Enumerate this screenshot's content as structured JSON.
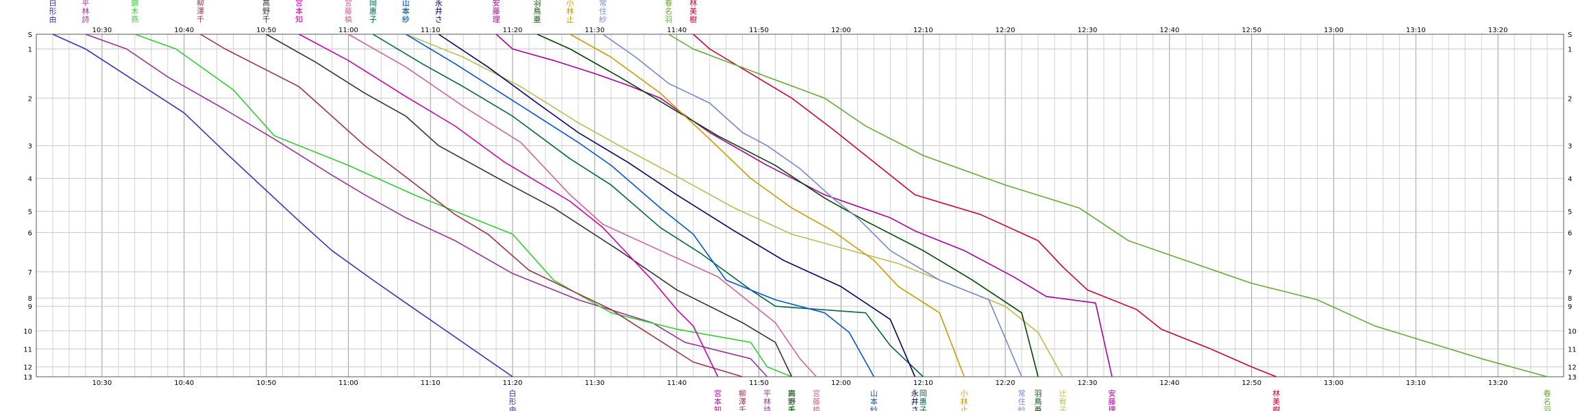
{
  "chart_data": {
    "type": "line",
    "title": "",
    "xlabel": "",
    "ylabel": "",
    "x_axis": {
      "type": "time",
      "range": [
        "10:22",
        "13:28"
      ],
      "tick_labels": [
        "10:30",
        "10:40",
        "10:50",
        "11:00",
        "11:10",
        "11:20",
        "11:30",
        "11:40",
        "11:50",
        "12:00",
        "12:10",
        "12:20",
        "12:30",
        "12:40",
        "12:50",
        "13:00",
        "13:10",
        "13:20"
      ],
      "minor_grid_minutes": 2
    },
    "y_axis": {
      "inverted": true,
      "tick_labels": [
        "S",
        "1",
        "2",
        "3",
        "4",
        "5",
        "6",
        "7",
        "8",
        "9",
        "10",
        "11",
        "12",
        "13"
      ],
      "stations": [
        {
          "label": "S",
          "v": 0
        },
        {
          "label": "1",
          "v": 0.45
        },
        {
          "label": "2",
          "v": 1.95
        },
        {
          "label": "3",
          "v": 3.4
        },
        {
          "label": "4",
          "v": 4.4
        },
        {
          "label": "5",
          "v": 5.4
        },
        {
          "label": "6",
          "v": 6.05
        },
        {
          "label": "7",
          "v": 7.25
        },
        {
          "label": "8",
          "v": 8.05
        },
        {
          "label": "9",
          "v": 8.3
        },
        {
          "label": "10",
          "v": 9.05
        },
        {
          "label": "11",
          "v": 9.6
        },
        {
          "label": "12",
          "v": 10.15
        },
        {
          "label": "13",
          "v": 10.45
        }
      ]
    },
    "series": [
      {
        "name": "白形由",
        "color": "#3333bb",
        "points": [
          [
            "10:24",
            0
          ],
          [
            "10:28",
            0.45
          ],
          [
            "10:32",
            1.1
          ],
          [
            "10:40",
            2.4
          ],
          [
            "10:45",
            3.6
          ],
          [
            "10:51",
            5.0
          ],
          [
            "10:54",
            5.7
          ],
          [
            "10:58",
            6.6
          ],
          [
            "11:03",
            7.5
          ],
          [
            "11:07",
            8.2
          ],
          [
            "11:20",
            10.45
          ]
        ]
      },
      {
        "name": "平林詩",
        "color": "#993399",
        "points": [
          [
            "10:28",
            0
          ],
          [
            "10:33",
            0.45
          ],
          [
            "10:38",
            1.3
          ],
          [
            "10:45",
            2.3
          ],
          [
            "10:51",
            3.2
          ],
          [
            "10:58",
            4.3
          ],
          [
            "11:02",
            4.9
          ],
          [
            "11:07",
            5.6
          ],
          [
            "11:13",
            6.3
          ],
          [
            "11:20",
            7.3
          ],
          [
            "11:25",
            7.8
          ],
          [
            "11:28",
            8.1
          ],
          [
            "11:37",
            8.8
          ],
          [
            "11:41",
            9.4
          ],
          [
            "11:49",
            9.9
          ],
          [
            "11:51",
            10.45
          ]
        ]
      },
      {
        "name": "錦木燕",
        "color": "#33cc33",
        "points": [
          [
            "10:34",
            0
          ],
          [
            "10:39",
            0.45
          ],
          [
            "10:46",
            1.7
          ],
          [
            "10:51",
            3.1
          ],
          [
            "11:00",
            4.0
          ],
          [
            "11:08",
            4.9
          ],
          [
            "11:17",
            5.8
          ],
          [
            "11:20",
            6.1
          ],
          [
            "11:25",
            7.5
          ],
          [
            "11:32",
            8.5
          ],
          [
            "11:40",
            9.0
          ],
          [
            "11:49",
            9.4
          ],
          [
            "11:51",
            10.15
          ],
          [
            "11:54",
            10.45
          ]
        ]
      },
      {
        "name": "柳澤千",
        "color": "#993344",
        "points": [
          [
            "10:42",
            0
          ],
          [
            "10:45",
            0.45
          ],
          [
            "10:54",
            1.6
          ],
          [
            "11:02",
            3.4
          ],
          [
            "11:13",
            5.5
          ],
          [
            "11:17",
            6.1
          ],
          [
            "11:22",
            7.2
          ],
          [
            "11:27",
            7.8
          ],
          [
            "11:32",
            8.4
          ],
          [
            "11:42",
            10.0
          ],
          [
            "11:48",
            10.45
          ]
        ]
      },
      {
        "name": "高野千",
        "color": "#333333",
        "points": [
          [
            "10:50",
            0
          ],
          [
            "10:56",
            0.85
          ],
          [
            "11:02",
            1.8
          ],
          [
            "11:07",
            2.5
          ],
          [
            "11:11",
            3.4
          ],
          [
            "11:19",
            4.5
          ],
          [
            "11:25",
            5.3
          ],
          [
            "11:33",
            6.6
          ],
          [
            "11:40",
            7.8
          ],
          [
            "11:48",
            8.8
          ],
          [
            "11:52",
            9.4
          ],
          [
            "11:54",
            10.45
          ]
        ]
      },
      {
        "name": "宮本知",
        "color": "#cc00aa",
        "points": [
          [
            "10:54",
            0
          ],
          [
            "11:00",
            0.8
          ],
          [
            "11:07",
            1.9
          ],
          [
            "11:13",
            2.8
          ],
          [
            "11:19",
            3.9
          ],
          [
            "11:27",
            5.1
          ],
          [
            "11:31",
            5.9
          ],
          [
            "11:37",
            7.5
          ],
          [
            "11:40",
            8.4
          ],
          [
            "11:42",
            8.9
          ],
          [
            "11:45",
            10.45
          ]
        ]
      },
      {
        "name": "宮藤槙",
        "color": "#cc6699",
        "points": [
          [
            "11:00",
            0
          ],
          [
            "11:07",
            1.0
          ],
          [
            "11:14",
            2.2
          ],
          [
            "11:21",
            3.3
          ],
          [
            "11:27",
            4.9
          ],
          [
            "11:31",
            5.8
          ],
          [
            "11:38",
            6.6
          ],
          [
            "11:45",
            7.4
          ],
          [
            "11:52",
            8.8
          ],
          [
            "11:55",
            9.9
          ],
          [
            "11:57",
            10.45
          ]
        ]
      },
      {
        "name": "岡惠子",
        "color": "#006644",
        "points": [
          [
            "11:03",
            0
          ],
          [
            "11:09",
            0.9
          ],
          [
            "11:14",
            1.6
          ],
          [
            "11:20",
            2.5
          ],
          [
            "11:27",
            3.8
          ],
          [
            "11:32",
            4.6
          ],
          [
            "11:38",
            5.9
          ],
          [
            "11:43",
            6.7
          ],
          [
            "11:49",
            7.8
          ],
          [
            "11:52",
            8.3
          ],
          [
            "12:03",
            8.5
          ],
          [
            "12:06",
            9.5
          ],
          [
            "12:10",
            10.45
          ]
        ]
      },
      {
        "name": "辻宥子",
        "color": "#bbbb55",
        "points": [
          [
            "11:07",
            0
          ],
          [
            "11:14",
            0.7
          ],
          [
            "11:21",
            1.6
          ],
          [
            "11:28",
            2.7
          ],
          [
            "11:33",
            3.4
          ],
          [
            "11:39",
            4.2
          ],
          [
            "11:47",
            5.3
          ],
          [
            "11:54",
            6.1
          ],
          [
            "12:07",
            7.0
          ],
          [
            "12:20",
            8.3
          ],
          [
            "12:24",
            9.1
          ],
          [
            "12:27",
            10.45
          ]
        ]
      },
      {
        "name": "山本紗",
        "color": "#0055cc",
        "points": [
          [
            "11:07",
            0
          ],
          [
            "11:13",
            0.9
          ],
          [
            "11:18",
            1.7
          ],
          [
            "11:23",
            2.5
          ],
          [
            "11:28",
            3.3
          ],
          [
            "11:32",
            4.0
          ],
          [
            "11:38",
            5.3
          ],
          [
            "11:42",
            6.1
          ],
          [
            "11:46",
            7.5
          ],
          [
            "11:52",
            8.1
          ],
          [
            "11:58",
            8.5
          ],
          [
            "12:01",
            9.1
          ],
          [
            "12:04",
            10.45
          ]
        ]
      },
      {
        "name": "永井さ",
        "color": "#000066",
        "points": [
          [
            "11:11",
            0
          ],
          [
            "11:17",
            1.0
          ],
          [
            "11:23",
            2.1
          ],
          [
            "11:28",
            3.0
          ],
          [
            "11:34",
            3.9
          ],
          [
            "11:40",
            4.9
          ],
          [
            "11:47",
            6.0
          ],
          [
            "11:53",
            6.9
          ],
          [
            "12:00",
            7.7
          ],
          [
            "12:06",
            8.7
          ],
          [
            "12:09",
            10.45
          ]
        ]
      },
      {
        "name": "安藤理",
        "color": "#aa0099",
        "points": [
          [
            "11:18",
            0
          ],
          [
            "11:20",
            0.45
          ],
          [
            "11:25",
            0.8
          ],
          [
            "11:30",
            1.2
          ],
          [
            "11:34",
            1.55
          ],
          [
            "11:38",
            1.95
          ],
          [
            "11:44",
            3.0
          ],
          [
            "11:51",
            4.0
          ],
          [
            "11:58",
            4.9
          ],
          [
            "12:06",
            5.6
          ],
          [
            "12:09",
            6.0
          ],
          [
            "12:15",
            6.6
          ],
          [
            "12:21",
            7.4
          ],
          [
            "12:25",
            8.0
          ],
          [
            "12:31",
            8.2
          ],
          [
            "12:33",
            10.45
          ]
        ]
      },
      {
        "name": "羽鳥亜",
        "color": "#004400",
        "points": [
          [
            "11:23",
            0
          ],
          [
            "11:27",
            0.45
          ],
          [
            "11:33",
            1.3
          ],
          [
            "11:39",
            2.2
          ],
          [
            "11:45",
            3.1
          ],
          [
            "11:52",
            4.0
          ],
          [
            "11:58",
            5.0
          ],
          [
            "12:03",
            5.7
          ],
          [
            "12:10",
            6.6
          ],
          [
            "12:16",
            7.5
          ],
          [
            "12:22",
            8.5
          ],
          [
            "12:24",
            10.45
          ]
        ]
      },
      {
        "name": "小林止",
        "color": "#cc9900",
        "points": [
          [
            "11:27",
            0
          ],
          [
            "11:32",
            0.7
          ],
          [
            "11:38",
            1.8
          ],
          [
            "11:44",
            3.2
          ],
          [
            "11:49",
            4.4
          ],
          [
            "11:54",
            5.3
          ],
          [
            "11:59",
            6.0
          ],
          [
            "12:04",
            6.9
          ],
          [
            "12:07",
            7.7
          ],
          [
            "12:12",
            8.5
          ],
          [
            "12:15",
            10.45
          ]
        ]
      },
      {
        "name": "常住紗",
        "color": "#7788cc",
        "points": [
          [
            "11:31",
            0
          ],
          [
            "11:35",
            0.7
          ],
          [
            "11:39",
            1.5
          ],
          [
            "11:44",
            2.1
          ],
          [
            "11:48",
            3.0
          ],
          [
            "11:51",
            3.4
          ],
          [
            "11:55",
            4.1
          ],
          [
            "11:59",
            5.0
          ],
          [
            "12:02",
            5.6
          ],
          [
            "12:06",
            6.6
          ],
          [
            "12:12",
            7.5
          ],
          [
            "12:18",
            8.1
          ],
          [
            "12:22",
            10.45
          ]
        ]
      },
      {
        "name": "林美樹",
        "color": "#cc0033",
        "points": [
          [
            "11:42",
            0
          ],
          [
            "11:44",
            0.45
          ],
          [
            "11:54",
            1.95
          ],
          [
            "11:59",
            2.9
          ],
          [
            "12:04",
            3.9
          ],
          [
            "12:09",
            4.9
          ],
          [
            "12:17",
            5.5
          ],
          [
            "12:24",
            6.3
          ],
          [
            "12:27",
            7.1
          ],
          [
            "12:30",
            7.8
          ],
          [
            "12:36",
            8.4
          ],
          [
            "12:39",
            9.0
          ],
          [
            "12:45",
            9.6
          ],
          [
            "12:50",
            10.15
          ],
          [
            "12:53",
            10.45
          ]
        ]
      },
      {
        "name": "春名羽",
        "color": "#66aa33",
        "points": [
          [
            "11:39",
            0
          ],
          [
            "11:42",
            0.45
          ],
          [
            "11:51",
            1.3
          ],
          [
            "11:58",
            1.95
          ],
          [
            "12:03",
            2.8
          ],
          [
            "12:10",
            3.7
          ],
          [
            "12:20",
            4.6
          ],
          [
            "12:29",
            5.3
          ],
          [
            "12:35",
            6.3
          ],
          [
            "12:50",
            7.6
          ],
          [
            "12:58",
            8.1
          ],
          [
            "13:05",
            8.9
          ],
          [
            "13:18",
            9.9
          ],
          [
            "13:26",
            10.45
          ]
        ]
      }
    ]
  }
}
